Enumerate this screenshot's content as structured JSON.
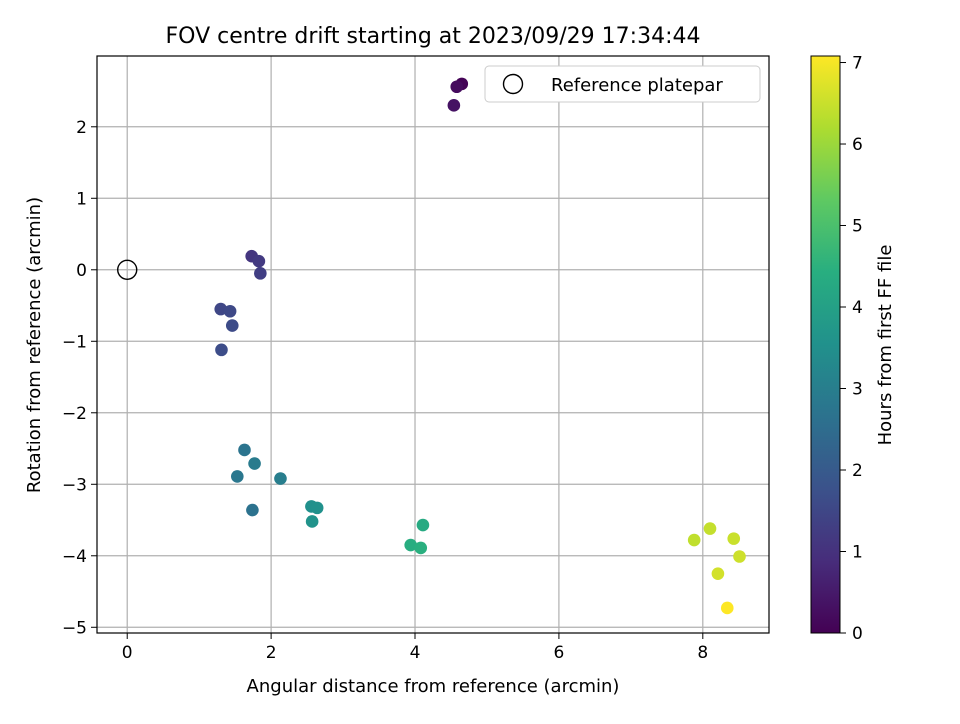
{
  "chart_data": {
    "type": "scatter",
    "title": "FOV centre drift starting at 2023/09/29 17:34:44",
    "xlabel": "Angular distance from reference (arcmin)",
    "ylabel": "Rotation from reference (arcmin)",
    "xlim": [
      -0.42,
      8.92
    ],
    "ylim": [
      -5.08,
      2.99
    ],
    "xticks": [
      "0",
      "2",
      "4",
      "6",
      "8"
    ],
    "yticks": [
      "−5",
      "−4",
      "−3",
      "−2",
      "−1",
      "0",
      "1",
      "2"
    ],
    "xtick_values": [
      0,
      2,
      4,
      6,
      8
    ],
    "ytick_values": [
      -5,
      -4,
      -3,
      -2,
      -1,
      0,
      1,
      2
    ],
    "grid": true,
    "legend": {
      "position": "top-right",
      "entries": [
        "Reference platepar"
      ]
    },
    "reference_point": {
      "x": 0,
      "y": 0
    },
    "colorbar": {
      "label": "Hours from first FF file",
      "range": [
        0,
        7.08
      ],
      "ticks": [
        "0",
        "1",
        "2",
        "3",
        "4",
        "5",
        "6",
        "7"
      ],
      "tick_values": [
        0,
        1,
        2,
        3,
        4,
        5,
        6,
        7
      ],
      "colormap": "viridis"
    },
    "points": [
      {
        "x": 4.65,
        "y": 2.6,
        "c": 0.05
      },
      {
        "x": 4.58,
        "y": 2.56,
        "c": 0.2
      },
      {
        "x": 4.54,
        "y": 2.3,
        "c": 0.35
      },
      {
        "x": 1.73,
        "y": 0.19,
        "c": 1.1
      },
      {
        "x": 1.83,
        "y": 0.12,
        "c": 1.2
      },
      {
        "x": 1.85,
        "y": -0.05,
        "c": 1.3
      },
      {
        "x": 1.3,
        "y": -0.55,
        "c": 1.5
      },
      {
        "x": 1.43,
        "y": -0.58,
        "c": 1.55
      },
      {
        "x": 1.46,
        "y": -0.78,
        "c": 1.6
      },
      {
        "x": 1.31,
        "y": -1.12,
        "c": 1.65
      },
      {
        "x": 1.63,
        "y": -2.52,
        "c": 2.7
      },
      {
        "x": 1.53,
        "y": -2.89,
        "c": 2.8
      },
      {
        "x": 1.77,
        "y": -2.71,
        "c": 2.9
      },
      {
        "x": 2.13,
        "y": -2.92,
        "c": 3.0
      },
      {
        "x": 1.74,
        "y": -3.36,
        "c": 2.65
      },
      {
        "x": 2.56,
        "y": -3.31,
        "c": 3.5
      },
      {
        "x": 2.64,
        "y": -3.33,
        "c": 3.55
      },
      {
        "x": 2.57,
        "y": -3.52,
        "c": 3.6
      },
      {
        "x": 4.11,
        "y": -3.57,
        "c": 4.3
      },
      {
        "x": 3.94,
        "y": -3.85,
        "c": 4.4
      },
      {
        "x": 4.08,
        "y": -3.89,
        "c": 4.45
      },
      {
        "x": 7.88,
        "y": -3.78,
        "c": 6.4
      },
      {
        "x": 8.1,
        "y": -3.62,
        "c": 6.45
      },
      {
        "x": 8.43,
        "y": -3.76,
        "c": 6.5
      },
      {
        "x": 8.51,
        "y": -4.01,
        "c": 6.55
      },
      {
        "x": 8.21,
        "y": -4.25,
        "c": 6.6
      },
      {
        "x": 8.34,
        "y": -4.73,
        "c": 7.08
      }
    ]
  }
}
